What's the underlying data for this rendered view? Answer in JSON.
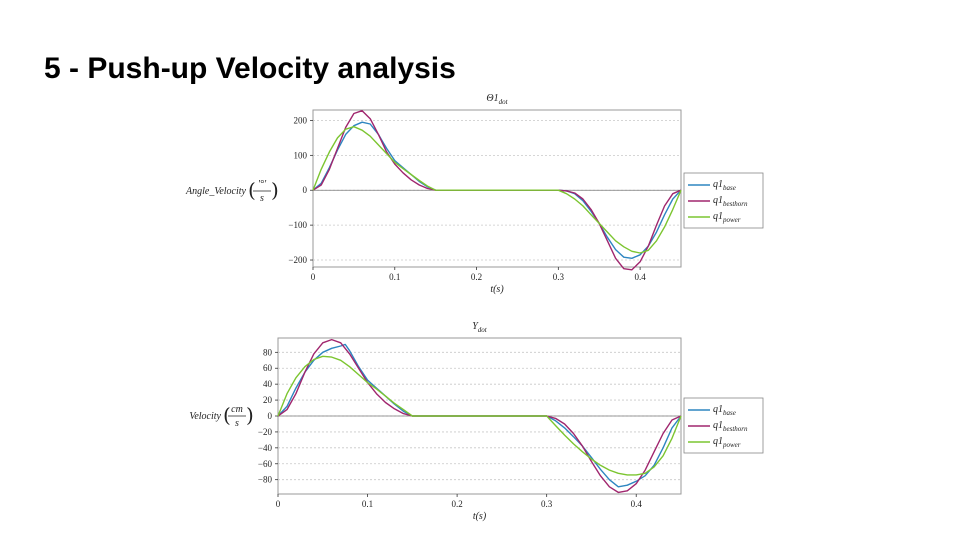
{
  "slide": {
    "title": "5 - Push-up Velocity analysis"
  },
  "colors": {
    "base": "#2e86c1",
    "besthorn": "#a0266e",
    "power": "#7cc530"
  },
  "chart_data": [
    {
      "type": "line",
      "title": "Θ1",
      "title_sub": "dot",
      "ylabel": "Angle_Velocity",
      "yunit_num": "'°'",
      "yunit_den": "s",
      "xlabel": "t(s)",
      "xlim": [
        0,
        0.45
      ],
      "ylim": [
        -220,
        230
      ],
      "xticks": [
        0,
        0.1,
        0.2,
        0.3,
        0.4
      ],
      "xtick_labels": [
        "0",
        "0.1",
        "0.2",
        "0.3",
        "0.4"
      ],
      "yticks": [
        200,
        100,
        0,
        -100,
        -200
      ],
      "ytick_labels": [
        "200",
        "100",
        "0",
        "−100",
        "−200"
      ],
      "grid": true,
      "legend": "right",
      "series": [
        {
          "name": "q1",
          "name_sub": "base",
          "color_key": "base",
          "x": [
            0,
            0.01,
            0.02,
            0.03,
            0.04,
            0.05,
            0.06,
            0.07,
            0.08,
            0.09,
            0.1,
            0.11,
            0.12,
            0.13,
            0.14,
            0.15,
            0.2,
            0.25,
            0.3,
            0.31,
            0.32,
            0.33,
            0.34,
            0.35,
            0.36,
            0.37,
            0.38,
            0.39,
            0.4,
            0.41,
            0.42,
            0.43,
            0.44,
            0.45
          ],
          "y": [
            0,
            20,
            65,
            115,
            160,
            185,
            195,
            190,
            160,
            120,
            85,
            65,
            45,
            25,
            10,
            0,
            0,
            0,
            0,
            -2,
            -10,
            -30,
            -60,
            -95,
            -135,
            -170,
            -192,
            -195,
            -185,
            -160,
            -120,
            -70,
            -25,
            0
          ]
        },
        {
          "name": "q1",
          "name_sub": "besthorn",
          "color_key": "besthorn",
          "x": [
            0,
            0.01,
            0.02,
            0.03,
            0.04,
            0.05,
            0.06,
            0.07,
            0.08,
            0.09,
            0.1,
            0.11,
            0.12,
            0.13,
            0.14,
            0.15,
            0.2,
            0.25,
            0.3,
            0.31,
            0.32,
            0.33,
            0.34,
            0.35,
            0.36,
            0.37,
            0.38,
            0.39,
            0.4,
            0.41,
            0.42,
            0.43,
            0.44,
            0.45
          ],
          "y": [
            0,
            15,
            60,
            120,
            180,
            220,
            228,
            205,
            160,
            110,
            75,
            50,
            30,
            15,
            5,
            0,
            0,
            0,
            0,
            -2,
            -8,
            -25,
            -55,
            -95,
            -145,
            -195,
            -225,
            -228,
            -205,
            -160,
            -100,
            -45,
            -10,
            0
          ]
        },
        {
          "name": "q1",
          "name_sub": "power",
          "color_key": "power",
          "x": [
            0,
            0.01,
            0.02,
            0.03,
            0.04,
            0.05,
            0.06,
            0.07,
            0.08,
            0.09,
            0.1,
            0.11,
            0.12,
            0.13,
            0.14,
            0.15,
            0.2,
            0.25,
            0.3,
            0.31,
            0.32,
            0.33,
            0.34,
            0.35,
            0.36,
            0.37,
            0.38,
            0.39,
            0.4,
            0.41,
            0.42,
            0.43,
            0.44,
            0.45
          ],
          "y": [
            0,
            60,
            110,
            150,
            175,
            182,
            172,
            155,
            130,
            105,
            80,
            62,
            45,
            28,
            12,
            0,
            0,
            0,
            0,
            -10,
            -25,
            -45,
            -70,
            -95,
            -120,
            -145,
            -162,
            -175,
            -180,
            -172,
            -145,
            -105,
            -55,
            0
          ]
        }
      ]
    },
    {
      "type": "line",
      "title": "Y",
      "title_sub": "dot",
      "ylabel": "Velocity",
      "yunit_num": "cm",
      "yunit_den": "s",
      "xlabel": "t(s)",
      "xlim": [
        0,
        0.45
      ],
      "ylim": [
        -98,
        98
      ],
      "xticks": [
        0,
        0.1,
        0.2,
        0.3,
        0.4
      ],
      "xtick_labels": [
        "0",
        "0.1",
        "0.2",
        "0.3",
        "0.4"
      ],
      "yticks": [
        80,
        60,
        40,
        20,
        0,
        -20,
        -40,
        -60,
        -80
      ],
      "ytick_labels": [
        "80",
        "60",
        "40",
        "20",
        "0",
        "−20",
        "−40",
        "−60",
        "−80"
      ],
      "grid": true,
      "legend": "right",
      "series": [
        {
          "name": "q1",
          "name_sub": "base",
          "color_key": "base",
          "x": [
            0,
            0.01,
            0.02,
            0.03,
            0.04,
            0.05,
            0.06,
            0.07,
            0.075,
            0.08,
            0.09,
            0.1,
            0.11,
            0.12,
            0.13,
            0.14,
            0.15,
            0.2,
            0.25,
            0.3,
            0.31,
            0.32,
            0.33,
            0.34,
            0.35,
            0.36,
            0.37,
            0.38,
            0.39,
            0.4,
            0.41,
            0.42,
            0.43,
            0.44,
            0.45
          ],
          "y": [
            0,
            12,
            35,
            55,
            70,
            80,
            85,
            88,
            90,
            82,
            62,
            45,
            35,
            25,
            15,
            6,
            0,
            0,
            0,
            0,
            -6,
            -15,
            -26,
            -38,
            -52,
            -67,
            -80,
            -89,
            -87,
            -82,
            -75,
            -62,
            -40,
            -15,
            0
          ]
        },
        {
          "name": "q1",
          "name_sub": "besthorn",
          "color_key": "besthorn",
          "x": [
            0,
            0.01,
            0.02,
            0.03,
            0.04,
            0.05,
            0.06,
            0.07,
            0.08,
            0.09,
            0.1,
            0.11,
            0.12,
            0.13,
            0.14,
            0.15,
            0.2,
            0.25,
            0.3,
            0.31,
            0.32,
            0.33,
            0.34,
            0.35,
            0.36,
            0.37,
            0.38,
            0.39,
            0.4,
            0.41,
            0.42,
            0.43,
            0.44,
            0.45
          ],
          "y": [
            0,
            8,
            28,
            55,
            78,
            92,
            96,
            92,
            78,
            60,
            42,
            28,
            17,
            9,
            3,
            0,
            0,
            0,
            0,
            -3,
            -10,
            -22,
            -38,
            -57,
            -75,
            -89,
            -96,
            -94,
            -85,
            -68,
            -45,
            -22,
            -5,
            0
          ]
        },
        {
          "name": "q1",
          "name_sub": "power",
          "color_key": "power",
          "x": [
            0,
            0.01,
            0.02,
            0.03,
            0.04,
            0.05,
            0.06,
            0.07,
            0.08,
            0.09,
            0.1,
            0.11,
            0.12,
            0.13,
            0.14,
            0.15,
            0.2,
            0.25,
            0.3,
            0.31,
            0.32,
            0.33,
            0.34,
            0.35,
            0.36,
            0.37,
            0.38,
            0.39,
            0.4,
            0.41,
            0.42,
            0.43,
            0.44,
            0.45
          ],
          "y": [
            0,
            28,
            48,
            62,
            71,
            75,
            74,
            70,
            62,
            52,
            42,
            34,
            25,
            16,
            8,
            0,
            0,
            0,
            0,
            -12,
            -24,
            -35,
            -45,
            -54,
            -62,
            -68,
            -72,
            -74,
            -74,
            -72,
            -64,
            -50,
            -28,
            0
          ]
        }
      ]
    }
  ]
}
